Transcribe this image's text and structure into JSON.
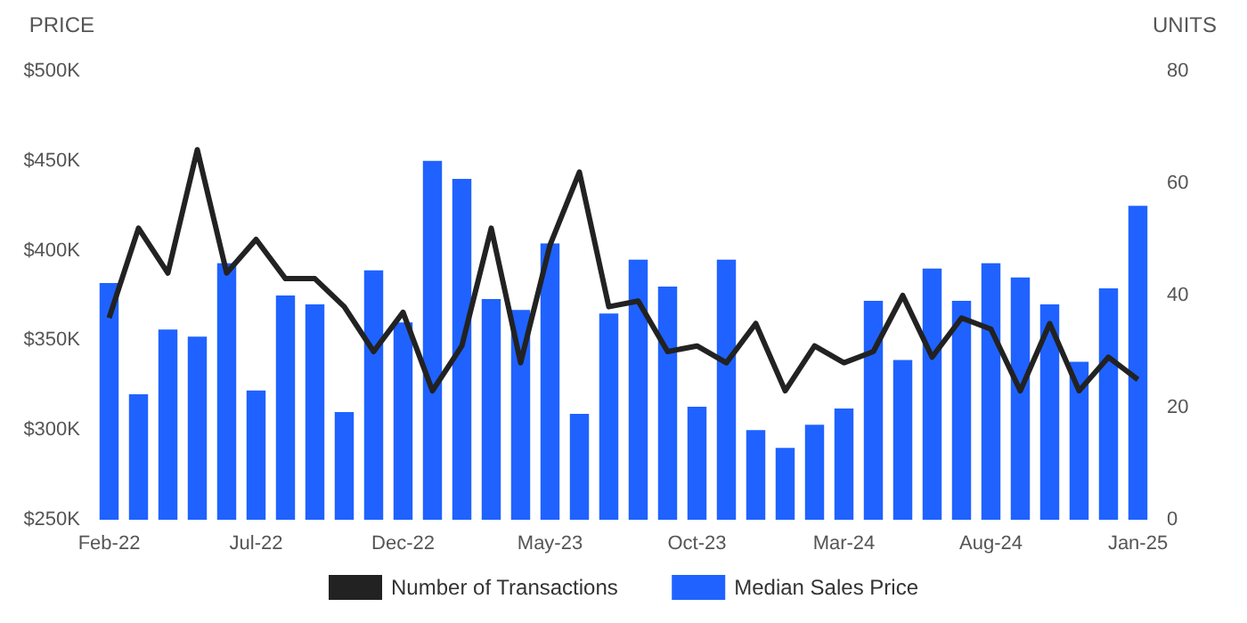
{
  "chart_data": {
    "type": "bar",
    "ylabel": "PRICE",
    "y2label": "UNITS",
    "categories": [
      "Feb-22",
      null,
      null,
      null,
      null,
      "Jul-22",
      null,
      null,
      null,
      null,
      "Dec-22",
      null,
      null,
      null,
      null,
      "May-23",
      null,
      null,
      null,
      null,
      "Oct-23",
      null,
      null,
      null,
      null,
      "Mar-24",
      null,
      null,
      null,
      null,
      "Aug-24",
      null,
      null,
      null,
      null,
      "Jan-25"
    ],
    "series": [
      {
        "name": "Number of Transactions",
        "type": "line",
        "axis": "y2",
        "color": "#222222",
        "values": [
          36,
          52,
          44,
          66,
          44,
          50,
          43,
          43,
          38,
          30,
          37,
          23,
          31,
          52,
          28,
          49,
          62,
          38,
          39,
          30,
          31,
          28,
          35,
          23,
          31,
          28,
          30,
          40,
          29,
          36,
          34,
          23,
          35,
          23,
          29,
          25
        ]
      },
      {
        "name": "Median Sales Price",
        "color": "#1f62ff",
        "values": [
          382000,
          320000,
          356000,
          352000,
          393000,
          322000,
          375000,
          370000,
          310000,
          389000,
          360000,
          450000,
          440000,
          373000,
          367000,
          404000,
          309000,
          365000,
          395000,
          380000,
          313000,
          395000,
          300000,
          290000,
          303000,
          312000,
          372000,
          339000,
          390000,
          372000,
          393000,
          385000,
          370000,
          338000,
          379000,
          425000
        ]
      }
    ],
    "ylim": [
      250000,
      500000
    ],
    "yticks": [
      {
        "value": 250000,
        "label": "$250K"
      },
      {
        "value": 300000,
        "label": "$300K"
      },
      {
        "value": 350000,
        "label": "$350K"
      },
      {
        "value": 400000,
        "label": "$400K"
      },
      {
        "value": 450000,
        "label": "$450K"
      },
      {
        "value": 500000,
        "label": "$500K"
      }
    ],
    "y2lim": [
      0,
      80
    ],
    "y2ticks": [
      0,
      20,
      40,
      60,
      80
    ],
    "legend": "bottom",
    "grid": false,
    "line_style": "solid",
    "marker": "none"
  }
}
